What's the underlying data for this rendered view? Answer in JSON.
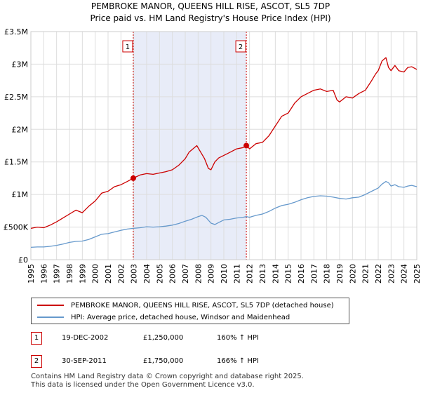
{
  "title": {
    "line1": "PEMBROKE MANOR, QUEENS HILL RISE, ASCOT, SL5 7DP",
    "line2": "Price paid vs. HM Land Registry's House Price Index (HPI)"
  },
  "colors": {
    "property": "#cc0000",
    "hpi": "#6699cc",
    "shade": "#e8ecf8",
    "grid": "#dddddd"
  },
  "chart_data": {
    "type": "line",
    "title": "Price paid vs. HM Land Registry's House Price Index (HPI)",
    "xlabel": "",
    "ylabel": "",
    "xlim": [
      1995,
      2025
    ],
    "ylim": [
      0,
      3500000
    ],
    "y_ticks": [
      {
        "value": 0,
        "label": "£0"
      },
      {
        "value": 500000,
        "label": "£500K"
      },
      {
        "value": 1000000,
        "label": "£1M"
      },
      {
        "value": 1500000,
        "label": "£1.5M"
      },
      {
        "value": 2000000,
        "label": "£2M"
      },
      {
        "value": 2500000,
        "label": "£2.5M"
      },
      {
        "value": 3000000,
        "label": "£3M"
      },
      {
        "value": 3500000,
        "label": "£3.5M"
      }
    ],
    "x_ticks": [
      "1995",
      "1996",
      "1997",
      "1998",
      "1999",
      "2000",
      "2001",
      "2002",
      "2003",
      "2004",
      "2005",
      "2006",
      "2007",
      "2008",
      "2009",
      "2010",
      "2011",
      "2012",
      "2013",
      "2014",
      "2015",
      "2016",
      "2017",
      "2018",
      "2019",
      "2020",
      "2021",
      "2022",
      "2023",
      "2024",
      "2025"
    ],
    "grid": true,
    "shaded_period": [
      2002.96,
      2011.75
    ],
    "series": [
      {
        "name": "PEMBROKE MANOR, QUEENS HILL RISE, ASCOT, SL5 7DP (detached house)",
        "color": "#cc0000",
        "x": [
          1995.0,
          1995.5,
          1996.0,
          1996.5,
          1997.0,
          1997.5,
          1998.0,
          1998.5,
          1999.0,
          1999.5,
          2000.0,
          2000.5,
          2001.0,
          2001.5,
          2002.0,
          2002.5,
          2002.96,
          2003.5,
          2004.0,
          2004.5,
          2005.0,
          2005.5,
          2006.0,
          2006.5,
          2007.0,
          2007.3,
          2007.6,
          2007.9,
          2008.2,
          2008.5,
          2008.8,
          2009.0,
          2009.3,
          2009.6,
          2010.0,
          2010.5,
          2011.0,
          2011.5,
          2011.75,
          2012.0,
          2012.5,
          2013.0,
          2013.5,
          2014.0,
          2014.5,
          2015.0,
          2015.5,
          2016.0,
          2016.5,
          2017.0,
          2017.5,
          2018.0,
          2018.5,
          2018.8,
          2019.0,
          2019.5,
          2020.0,
          2020.5,
          2021.0,
          2021.5,
          2021.8,
          2022.0,
          2022.3,
          2022.6,
          2022.8,
          2023.0,
          2023.3,
          2023.6,
          2024.0,
          2024.3,
          2024.6,
          2025.0
        ],
        "values": [
          480000,
          500000,
          490000,
          530000,
          580000,
          640000,
          700000,
          760000,
          720000,
          820000,
          900000,
          1020000,
          1050000,
          1120000,
          1150000,
          1200000,
          1250000,
          1300000,
          1320000,
          1310000,
          1330000,
          1350000,
          1380000,
          1450000,
          1550000,
          1650000,
          1700000,
          1750000,
          1650000,
          1550000,
          1400000,
          1380000,
          1500000,
          1560000,
          1600000,
          1650000,
          1700000,
          1720000,
          1750000,
          1700000,
          1780000,
          1800000,
          1900000,
          2050000,
          2200000,
          2250000,
          2400000,
          2500000,
          2550000,
          2600000,
          2620000,
          2580000,
          2600000,
          2450000,
          2420000,
          2500000,
          2480000,
          2550000,
          2600000,
          2750000,
          2850000,
          2900000,
          3050000,
          3100000,
          2950000,
          2900000,
          2980000,
          2900000,
          2880000,
          2950000,
          2960000,
          2920000
        ]
      },
      {
        "name": "HPI: Average price, detached house, Windsor and Maidenhead",
        "color": "#6699cc",
        "x": [
          1995.0,
          1995.5,
          1996.0,
          1996.5,
          1997.0,
          1997.5,
          1998.0,
          1998.5,
          1999.0,
          1999.5,
          2000.0,
          2000.5,
          2001.0,
          2001.5,
          2002.0,
          2002.5,
          2002.96,
          2003.5,
          2004.0,
          2004.5,
          2005.0,
          2005.5,
          2006.0,
          2006.5,
          2007.0,
          2007.5,
          2008.0,
          2008.3,
          2008.6,
          2009.0,
          2009.3,
          2009.6,
          2010.0,
          2010.5,
          2011.0,
          2011.5,
          2011.75,
          2012.0,
          2012.5,
          2013.0,
          2013.5,
          2014.0,
          2014.5,
          2015.0,
          2015.5,
          2016.0,
          2016.5,
          2017.0,
          2017.5,
          2018.0,
          2018.5,
          2019.0,
          2019.5,
          2020.0,
          2020.5,
          2021.0,
          2021.5,
          2022.0,
          2022.3,
          2022.6,
          2022.8,
          2023.0,
          2023.3,
          2023.6,
          2024.0,
          2024.3,
          2024.6,
          2025.0
        ],
        "values": [
          190000,
          195000,
          195000,
          205000,
          220000,
          240000,
          265000,
          280000,
          285000,
          310000,
          350000,
          390000,
          400000,
          425000,
          450000,
          470000,
          480000,
          490000,
          505000,
          500000,
          505000,
          515000,
          530000,
          555000,
          590000,
          620000,
          660000,
          680000,
          650000,
          560000,
          540000,
          570000,
          610000,
          620000,
          640000,
          650000,
          660000,
          650000,
          680000,
          700000,
          740000,
          790000,
          830000,
          850000,
          880000,
          920000,
          950000,
          970000,
          980000,
          975000,
          960000,
          940000,
          930000,
          950000,
          960000,
          1000000,
          1050000,
          1100000,
          1160000,
          1200000,
          1180000,
          1130000,
          1150000,
          1120000,
          1110000,
          1130000,
          1140000,
          1120000
        ]
      }
    ],
    "annotations": [
      {
        "label": "1",
        "x": 2002.96,
        "y": 1250000
      },
      {
        "label": "2",
        "x": 2011.75,
        "y": 1750000
      }
    ]
  },
  "legend": {
    "property_label": "PEMBROKE MANOR, QUEENS HILL RISE, ASCOT, SL5 7DP (detached house)",
    "hpi_label": "HPI: Average price, detached house, Windsor and Maidenhead"
  },
  "sales": [
    {
      "num": "1",
      "date": "19-DEC-2002",
      "price": "£1,250,000",
      "hpi": "160% ↑ HPI"
    },
    {
      "num": "2",
      "date": "30-SEP-2011",
      "price": "£1,750,000",
      "hpi": "166% ↑ HPI"
    }
  ],
  "footer": {
    "line1": "Contains HM Land Registry data © Crown copyright and database right 2025.",
    "line2": "This data is licensed under the Open Government Licence v3.0."
  }
}
